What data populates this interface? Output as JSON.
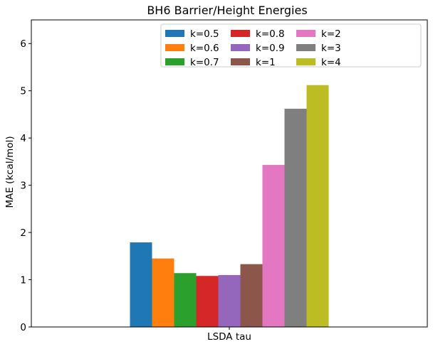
{
  "chart_data": {
    "type": "bar",
    "title": "BH6 Barrier/Height Energies",
    "xlabel": "",
    "ylabel": "MAE (kcal/mol)",
    "categories": [
      "LSDA tau"
    ],
    "ylim": [
      0,
      6.5
    ],
    "yticks": [
      0,
      1,
      2,
      3,
      4,
      5,
      6
    ],
    "grid": false,
    "legend": {
      "position": "top-right",
      "columns": 4
    },
    "series": [
      {
        "name": "k=0.5",
        "color": "#1f77b4",
        "values": [
          1.79
        ]
      },
      {
        "name": "k=0.6",
        "color": "#ff7f0e",
        "values": [
          1.45
        ]
      },
      {
        "name": "k=0.7",
        "color": "#2ca02c",
        "values": [
          1.14
        ]
      },
      {
        "name": "k=0.8",
        "color": "#d62728",
        "values": [
          1.08
        ]
      },
      {
        "name": "k=0.9",
        "color": "#9467bd",
        "values": [
          1.1
        ]
      },
      {
        "name": "k=1",
        "color": "#8c564b",
        "values": [
          1.33
        ]
      },
      {
        "name": "k=2",
        "color": "#e377c2",
        "values": [
          3.43
        ]
      },
      {
        "name": "k=3",
        "color": "#7f7f7f",
        "values": [
          4.62
        ]
      },
      {
        "name": "k=4",
        "color": "#bcbd22",
        "values": [
          5.12
        ]
      }
    ]
  }
}
